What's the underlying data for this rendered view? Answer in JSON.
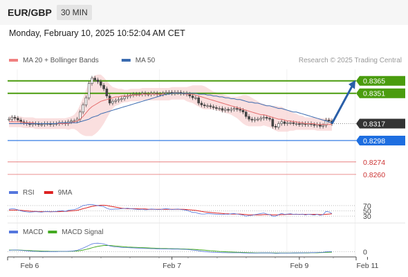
{
  "header": {
    "symbol": "EUR/GBP",
    "timeframe": "30 MIN"
  },
  "datetime": "Monday, February 10, 2025 10:52:04 AM CET",
  "credit": "Research © 2025 Trading Central",
  "colors": {
    "resistance": "#4a9c0e",
    "support": "#1e6ee0",
    "weak": "#e46c6c",
    "price": "#333333",
    "ma20": "#e46c6c",
    "ma50": "#3a6bb0",
    "bands": "#f8d4d4",
    "rsi": "#5577dd",
    "rsi_ma": "#dd2222",
    "macd": "#5577dd",
    "macd_signal": "#44aa22",
    "arrow": "#2a5fa8"
  },
  "chart_data": [
    {
      "type": "candlestick",
      "legend": [
        {
          "name": "MA 20 + Bollinger Bands",
          "color": "#f08080"
        },
        {
          "name": "MA 50",
          "color": "#3a6bb0"
        }
      ],
      "x_ticks": [
        {
          "label": "Feb 6",
          "i": 7
        },
        {
          "label": "Feb 7",
          "i": 55
        },
        {
          "label": "Feb 9",
          "i": 98
        },
        {
          "label": "Feb 11",
          "i": 121
        }
      ],
      "ylim": [
        0.8256,
        0.8378
      ],
      "levels": [
        {
          "label": "0.8365",
          "value": 0.8365,
          "kind": "resistance"
        },
        {
          "label": "0.8351",
          "value": 0.8351,
          "kind": "resistance"
        },
        {
          "label": "0.8317",
          "value": 0.8317,
          "kind": "current"
        },
        {
          "label": "0.8298",
          "value": 0.8298,
          "kind": "support"
        },
        {
          "label": "0.8274",
          "value": 0.8274,
          "kind": "weak"
        },
        {
          "label": "0.8260",
          "value": 0.826,
          "kind": "weak"
        }
      ],
      "close": [
        0.8322,
        0.8324,
        0.8323,
        0.8321,
        0.8319,
        0.8318,
        0.8317,
        0.8316,
        0.8317,
        0.8317,
        0.8316,
        0.8316,
        0.8317,
        0.8317,
        0.8316,
        0.8317,
        0.8317,
        0.8318,
        0.8318,
        0.8317,
        0.8319,
        0.832,
        0.832,
        0.8322,
        0.833,
        0.8338,
        0.8346,
        0.8362,
        0.8368,
        0.8366,
        0.8364,
        0.836,
        0.8356,
        0.8348,
        0.834,
        0.8342,
        0.8343,
        0.8344,
        0.8345,
        0.8347,
        0.8348,
        0.8349,
        0.835,
        0.835,
        0.835,
        0.8351,
        0.835,
        0.835,
        0.8351,
        0.8351,
        0.835,
        0.835,
        0.8351,
        0.8352,
        0.8352,
        0.8351,
        0.8352,
        0.8352,
        0.8351,
        0.8351,
        0.835,
        0.8348,
        0.8346,
        0.8346,
        0.834,
        0.8338,
        0.8337,
        0.8337,
        0.8336,
        0.8335,
        0.8334,
        0.8334,
        0.8332,
        0.8333,
        0.8332,
        0.8333,
        0.8334,
        0.8333,
        0.8332,
        0.833,
        0.8325,
        0.8322,
        0.8321,
        0.8322,
        0.8322,
        0.8323,
        0.8324,
        0.8323,
        0.8322,
        0.8314,
        0.8313,
        0.8317,
        0.8319,
        0.8317,
        0.8318,
        0.8318,
        0.8317,
        0.8317,
        0.8316,
        0.8317,
        0.8316,
        0.8317,
        0.8316,
        0.8315,
        0.8316,
        0.8314,
        0.8315,
        0.8321,
        0.832,
        0.8317
      ],
      "ma20": [
        0.8319,
        0.8319,
        0.8319,
        0.8319,
        0.8319,
        0.8318,
        0.8318,
        0.8318,
        0.8318,
        0.8317,
        0.8317,
        0.8317,
        0.8317,
        0.8317,
        0.8317,
        0.8317,
        0.8317,
        0.8317,
        0.8317,
        0.8317,
        0.8317,
        0.8318,
        0.8319,
        0.832,
        0.8322,
        0.8325,
        0.8329,
        0.8333,
        0.8336,
        0.8338,
        0.834,
        0.8342,
        0.8343,
        0.8344,
        0.8345,
        0.8346,
        0.8347,
        0.8347,
        0.8348,
        0.8348,
        0.8348,
        0.8349,
        0.8349,
        0.8349,
        0.8349,
        0.835,
        0.835,
        0.835,
        0.835,
        0.835,
        0.835,
        0.835,
        0.835,
        0.835,
        0.835,
        0.8351,
        0.8351,
        0.8351,
        0.8351,
        0.8351,
        0.835,
        0.835,
        0.835,
        0.8349,
        0.8348,
        0.8347,
        0.8346,
        0.8345,
        0.8344,
        0.8343,
        0.8342,
        0.8341,
        0.834,
        0.8339,
        0.8338,
        0.8337,
        0.8336,
        0.8335,
        0.8334,
        0.8333,
        0.8332,
        0.8331,
        0.833,
        0.8329,
        0.8328,
        0.8327,
        0.8327,
        0.8326,
        0.8325,
        0.8324,
        0.8323,
        0.8322,
        0.8322,
        0.8321,
        0.832,
        0.832,
        0.8319,
        0.8319,
        0.8318,
        0.8318,
        0.8317,
        0.8317,
        0.8317,
        0.8317,
        0.8316,
        0.8316,
        0.8316,
        0.8316,
        0.8316,
        0.8316
      ],
      "ma50": [
        0.8317,
        0.8317,
        0.8317,
        0.8317,
        0.8317,
        0.8317,
        0.8317,
        0.8317,
        0.8317,
        0.8317,
        0.8317,
        0.8317,
        0.8317,
        0.8317,
        0.8317,
        0.8317,
        0.8317,
        0.8318,
        0.8318,
        0.8318,
        0.8318,
        0.8318,
        0.8318,
        0.8318,
        0.8319,
        0.832,
        0.8321,
        0.8322,
        0.8324,
        0.8325,
        0.8326,
        0.8328,
        0.8329,
        0.833,
        0.8331,
        0.8332,
        0.8333,
        0.8334,
        0.8335,
        0.8336,
        0.8337,
        0.8338,
        0.8339,
        0.834,
        0.8341,
        0.8342,
        0.8343,
        0.8344,
        0.8345,
        0.8346,
        0.8347,
        0.8348,
        0.8349,
        0.835,
        0.835,
        0.8351,
        0.8351,
        0.8351,
        0.8351,
        0.8351,
        0.8351,
        0.8351,
        0.8351,
        0.8351,
        0.835,
        0.835,
        0.835,
        0.8349,
        0.8349,
        0.8348,
        0.8348,
        0.8347,
        0.8347,
        0.8346,
        0.8346,
        0.8345,
        0.8345,
        0.8344,
        0.8344,
        0.8343,
        0.8342,
        0.8341,
        0.8341,
        0.834,
        0.834,
        0.8339,
        0.8338,
        0.8337,
        0.8337,
        0.8336,
        0.8335,
        0.8334,
        0.8334,
        0.8333,
        0.8332,
        0.8331,
        0.833,
        0.833,
        0.8329,
        0.8328,
        0.8327,
        0.8326,
        0.8325,
        0.8324,
        0.8323,
        0.8322,
        0.8321,
        0.832,
        0.8319,
        0.8318
      ],
      "band_width": [
        0.0006,
        0.0006,
        0.0006,
        0.0006,
        0.0006,
        0.0006,
        0.0006,
        0.0006,
        0.0006,
        0.0006,
        0.0006,
        0.0006,
        0.0006,
        0.0006,
        0.0006,
        0.0006,
        0.0006,
        0.0006,
        0.0006,
        0.0006,
        0.0007,
        0.0007,
        0.0008,
        0.0011,
        0.0016,
        0.0021,
        0.0026,
        0.003,
        0.0033,
        0.0033,
        0.0032,
        0.003,
        0.0026,
        0.0021,
        0.0016,
        0.0012,
        0.001,
        0.0009,
        0.0008,
        0.0007,
        0.0007,
        0.0007,
        0.0007,
        0.0007,
        0.0007,
        0.0007,
        0.0007,
        0.0007,
        0.0007,
        0.0007,
        0.0007,
        0.0007,
        0.0007,
        0.0007,
        0.0007,
        0.0007,
        0.0007,
        0.0007,
        0.0007,
        0.0007,
        0.0008,
        0.0009,
        0.001,
        0.0011,
        0.0012,
        0.0013,
        0.0013,
        0.0012,
        0.0011,
        0.001,
        0.001,
        0.001,
        0.001,
        0.001,
        0.001,
        0.001,
        0.0011,
        0.0012,
        0.0014,
        0.0016,
        0.0017,
        0.0017,
        0.0016,
        0.0015,
        0.0014,
        0.0013,
        0.0012,
        0.0012,
        0.0012,
        0.0013,
        0.0014,
        0.0014,
        0.0014,
        0.0013,
        0.0012,
        0.0011,
        0.001,
        0.0009,
        0.0008,
        0.0008,
        0.0007,
        0.0007,
        0.0007,
        0.0007,
        0.0007,
        0.0007,
        0.0007,
        0.0007,
        0.0007,
        0.0007
      ],
      "forecast_target": 0.8365
    },
    {
      "type": "line",
      "legend": [
        {
          "name": "RSI",
          "color": "#5577dd"
        },
        {
          "name": "9MA",
          "color": "#dd2222"
        }
      ],
      "levels": [
        {
          "label": "70",
          "value": 70
        },
        {
          "label": "50",
          "value": 50
        },
        {
          "label": "30",
          "value": 30
        }
      ],
      "ylim": [
        20,
        80
      ],
      "series": [
        {
          "name": "RSI",
          "values": [
            56,
            58,
            57,
            54,
            50,
            48,
            46,
            45,
            46,
            47,
            46,
            45,
            47,
            48,
            46,
            47,
            48,
            50,
            51,
            48,
            52,
            54,
            55,
            58,
            64,
            70,
            72,
            74,
            74,
            72,
            70,
            68,
            66,
            60,
            56,
            56,
            57,
            57,
            58,
            59,
            60,
            58,
            57,
            56,
            55,
            56,
            54,
            55,
            57,
            56,
            55,
            55,
            57,
            58,
            57,
            55,
            56,
            57,
            55,
            54,
            52,
            48,
            44,
            44,
            40,
            38,
            38,
            40,
            39,
            38,
            37,
            37,
            36,
            38,
            37,
            39,
            40,
            38,
            36,
            34,
            30,
            32,
            33,
            36,
            38,
            40,
            42,
            38,
            36,
            30,
            30,
            36,
            40,
            37,
            38,
            39,
            37,
            38,
            36,
            38,
            35,
            37,
            36,
            34,
            37,
            33,
            36,
            48,
            46,
            40
          ]
        },
        {
          "name": "9MA",
          "values": [
            53,
            53,
            53,
            53,
            52,
            51,
            50,
            49,
            48,
            48,
            47,
            47,
            47,
            47,
            47,
            47,
            47,
            47,
            48,
            48,
            49,
            50,
            51,
            52,
            55,
            58,
            61,
            64,
            67,
            69,
            70,
            71,
            71,
            70,
            68,
            66,
            64,
            62,
            60,
            59,
            58,
            58,
            58,
            58,
            57,
            57,
            57,
            56,
            56,
            56,
            56,
            56,
            56,
            56,
            56,
            56,
            56,
            56,
            56,
            56,
            55,
            54,
            53,
            52,
            50,
            48,
            46,
            45,
            44,
            43,
            42,
            41,
            40,
            39,
            39,
            38,
            38,
            38,
            38,
            37,
            36,
            35,
            35,
            35,
            35,
            35,
            36,
            36,
            36,
            35,
            35,
            35,
            36,
            36,
            37,
            37,
            37,
            37,
            37,
            37,
            37,
            37,
            37,
            37,
            37,
            36,
            36,
            37,
            38,
            39
          ]
        }
      ]
    },
    {
      "type": "line",
      "legend": [
        {
          "name": "MACD",
          "color": "#5577dd"
        },
        {
          "name": "MACD Signal",
          "color": "#44aa22"
        }
      ],
      "levels": [
        {
          "label": "0",
          "value": 0
        }
      ],
      "ylim": [
        -2,
        10
      ],
      "series": [
        {
          "name": "MACD",
          "values": [
            1,
            1.2,
            1.3,
            1.2,
            1,
            0.8,
            0.6,
            0.4,
            0.3,
            0.2,
            0.1,
            0,
            0,
            0,
            0,
            0,
            0,
            0.1,
            0.2,
            0.2,
            0.3,
            0.4,
            0.6,
            1,
            1.8,
            2.8,
            3.8,
            5,
            6,
            6.5,
            6.6,
            6.4,
            6,
            5.3,
            4.5,
            4,
            3.7,
            3.5,
            3.3,
            3.2,
            3.1,
            3,
            2.9,
            2.8,
            2.7,
            2.6,
            2.5,
            2.4,
            2.3,
            2.3,
            2.2,
            2.2,
            2.1,
            2.1,
            2.1,
            2,
            2,
            2,
            1.9,
            1.8,
            1.7,
            1.5,
            1.2,
            1,
            0.6,
            0.3,
            0,
            -0.2,
            -0.4,
            -0.5,
            -0.6,
            -0.7,
            -0.8,
            -0.8,
            -0.9,
            -0.9,
            -0.9,
            -0.9,
            -0.9,
            -1,
            -1.1,
            -1.2,
            -1.2,
            -1.2,
            -1.1,
            -1,
            -1,
            -1,
            -1,
            -1.2,
            -1.4,
            -1.3,
            -1.2,
            -1.2,
            -1.1,
            -1.1,
            -1,
            -1,
            -1,
            -1,
            -0.9,
            -0.9,
            -0.8,
            -0.8,
            -0.7,
            -0.6,
            -0.5,
            -0.2,
            0,
            0
          ]
        },
        {
          "name": "MACD Signal",
          "values": [
            1.2,
            1.2,
            1.2,
            1.2,
            1.1,
            1,
            0.9,
            0.8,
            0.7,
            0.6,
            0.5,
            0.4,
            0.3,
            0.3,
            0.2,
            0.2,
            0.2,
            0.2,
            0.2,
            0.2,
            0.2,
            0.3,
            0.4,
            0.5,
            0.8,
            1.2,
            1.7,
            2.3,
            3,
            3.6,
            4.1,
            4.5,
            4.8,
            4.9,
            4.8,
            4.6,
            4.4,
            4.2,
            4,
            3.8,
            3.6,
            3.5,
            3.4,
            3.3,
            3.2,
            3.1,
            3,
            2.9,
            2.8,
            2.7,
            2.6,
            2.5,
            2.4,
            2.4,
            2.3,
            2.3,
            2.2,
            2.2,
            2.1,
            2.1,
            2,
            1.9,
            1.8,
            1.7,
            1.5,
            1.3,
            1.1,
            0.9,
            0.7,
            0.5,
            0.3,
            0.1,
            0,
            -0.1,
            -0.2,
            -0.3,
            -0.4,
            -0.5,
            -0.6,
            -0.7,
            -0.8,
            -0.9,
            -0.9,
            -1,
            -1,
            -1,
            -1,
            -1,
            -1,
            -1,
            -1.1,
            -1.1,
            -1.1,
            -1.1,
            -1.1,
            -1.1,
            -1.1,
            -1.1,
            -1,
            -1,
            -1,
            -1,
            -0.9,
            -0.9,
            -0.9,
            -0.8,
            -0.7,
            -0.6,
            -0.5,
            -0.4
          ]
        }
      ]
    }
  ]
}
